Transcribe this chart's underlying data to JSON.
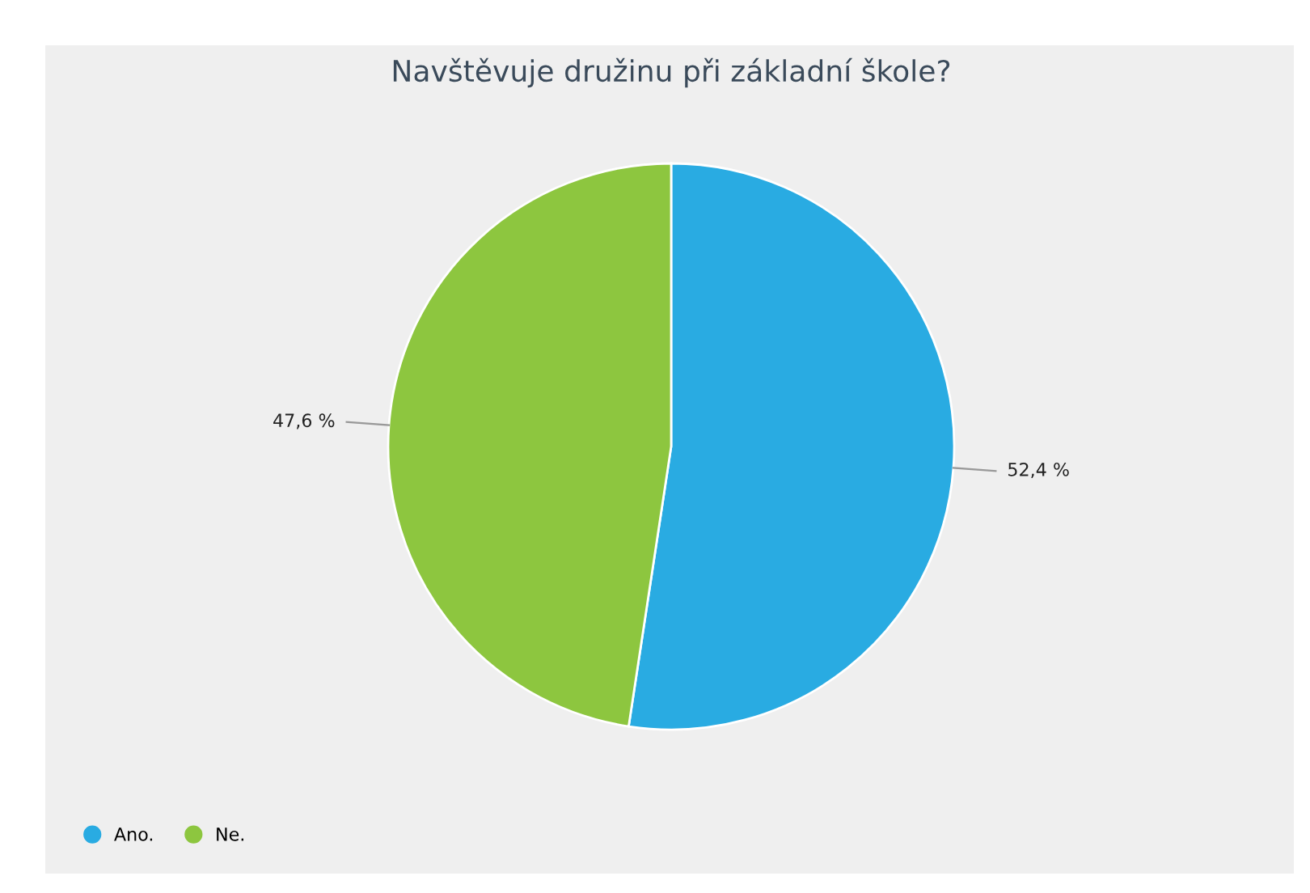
{
  "chart_data": {
    "type": "pie",
    "title": "Navštěvuje družinu při základní škole?",
    "categories": [
      "Ano.",
      "Ne."
    ],
    "values": [
      52.4,
      47.6
    ],
    "colors": [
      "#29abe2",
      "#8dc63f"
    ],
    "value_labels": [
      "52,4 %",
      "47,6 %"
    ],
    "legend": "bottom left"
  }
}
